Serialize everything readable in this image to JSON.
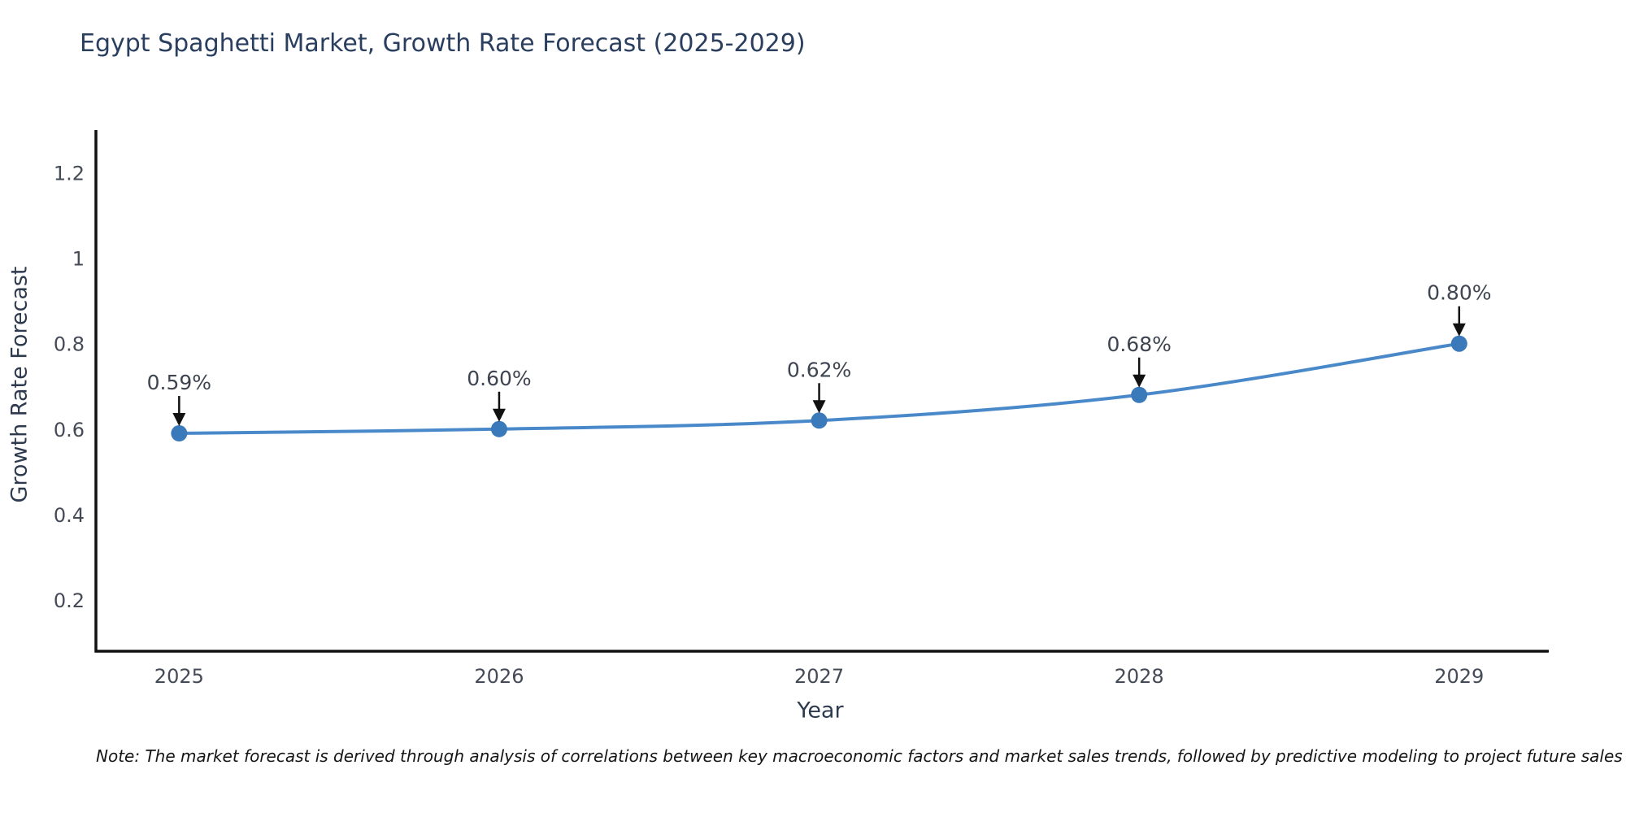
{
  "chart": {
    "title": "Egypt Spaghetti Market, Growth Rate Forecast (2025-2029)",
    "xlabel": "Year",
    "ylabel": "Growth Rate Forecast",
    "note": "Note: The market forecast is derived through analysis of correlations between key macroeconomic factors and market sales trends, followed by predictive modeling to project future sales"
  },
  "chart_data": {
    "type": "line",
    "title": "Egypt Spaghetti Market, Growth Rate Forecast (2025-2029)",
    "xlabel": "Year",
    "ylabel": "Growth Rate Forecast",
    "categories": [
      "2025",
      "2026",
      "2027",
      "2028",
      "2029"
    ],
    "x": [
      2025,
      2026,
      2027,
      2028,
      2029
    ],
    "values": [
      0.59,
      0.6,
      0.62,
      0.68,
      0.8
    ],
    "point_labels": [
      "0.59%",
      "0.60%",
      "0.62%",
      "0.68%",
      "0.80%"
    ],
    "yticks": [
      "0.2",
      "0.4",
      "0.6",
      "0.8",
      "1",
      "1.2"
    ],
    "ytick_values": [
      0.2,
      0.4,
      0.6,
      0.8,
      1.0,
      1.2
    ],
    "xlim": [
      2024.74,
      2029.28
    ],
    "ylim": [
      0.08,
      1.3
    ],
    "grid": false,
    "legend": false,
    "line_shape": "spline",
    "colors": {
      "line": "#4a89c9",
      "marker": "#3a79ba",
      "axis": "#111111",
      "tick_label": "#444b57",
      "annotation_text": "#3e4550",
      "annotation_arrow": "#111111",
      "title": "#2a3f5f",
      "axis_title": "#2e3a4e"
    }
  }
}
